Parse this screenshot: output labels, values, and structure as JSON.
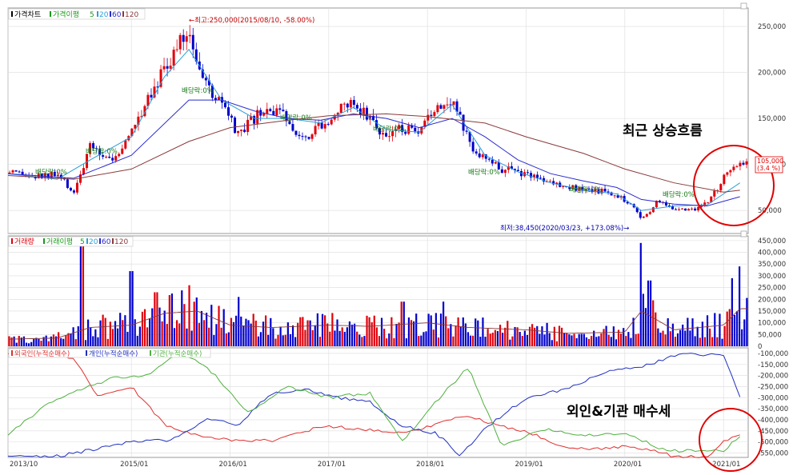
{
  "annotations": {
    "recent_trend": "최근 상승흐름",
    "buying_trend": "외인&기관 매수세",
    "high_label": "←최고:250,000(2015/08/10, -58.00%)",
    "low_label": "최저:38,450(2020/03/23, +173.08%)→",
    "dividend_label": "배당락:0%",
    "current_price": "105,000",
    "current_change": "(3.4 %)"
  },
  "colors": {
    "up": "#e0000a",
    "down": "#0000cc",
    "ma5": "#1a9a1a",
    "ma20": "#2aa0d8",
    "ma60": "#2a2ad0",
    "ma120": "#8a3a3a",
    "foreign": "#e03030",
    "individual": "#2030c0",
    "institution": "#50b040",
    "circle": "#e00000",
    "grid": "#dcdcdc"
  },
  "chart_data": [
    {
      "type": "line",
      "title": "",
      "legend": {
        "placement": "top-left",
        "label": "가격차트",
        "ma_label": "가격이평",
        "periods": [
          "5",
          "20",
          "60",
          "120"
        ]
      },
      "ylim": [
        25000,
        270000
      ],
      "yticks": [
        50000,
        100000,
        150000,
        200000,
        250000
      ],
      "ytick_labels": [
        "50,000",
        "100,000",
        "150,000",
        "200,000",
        "250,000"
      ],
      "series": [
        {
          "key": "close",
          "dates": [
            "2013/10",
            "2014/01",
            "2014/04",
            "2014/06",
            "2014/08",
            "2014/11",
            "2015/01",
            "2015/03",
            "2015/05",
            "2015/07",
            "2015/08",
            "2015/10",
            "2015/12",
            "2016/02",
            "2016/04",
            "2016/06",
            "2016/08",
            "2016/10",
            "2016/12",
            "2017/02",
            "2017/04",
            "2017/06",
            "2017/08",
            "2017/10",
            "2017/12",
            "2018/02",
            "2018/04",
            "2018/06",
            "2018/08",
            "2018/10",
            "2018/12",
            "2019/02",
            "2019/04",
            "2019/06",
            "2019/08",
            "2019/10",
            "2019/12",
            "2020/02",
            "2020/03",
            "2020/05",
            "2020/07",
            "2020/09",
            "2020/11",
            "2021/01",
            "2021/03"
          ],
          "values": [
            90000,
            86000,
            88000,
            70000,
            118000,
            105000,
            135000,
            175000,
            205000,
            232000,
            248000,
            185000,
            165000,
            130000,
            150000,
            160000,
            148000,
            130000,
            145000,
            155000,
            170000,
            150000,
            130000,
            140000,
            130000,
            165000,
            172000,
            125000,
            105000,
            95000,
            92000,
            88000,
            80000,
            78000,
            70000,
            72000,
            68000,
            55000,
            40000,
            60000,
            52000,
            50000,
            58000,
            85000,
            105000
          ]
        },
        {
          "key": "ma20",
          "name": "20",
          "dates": [
            "2013/10",
            "2014/04",
            "2014/08",
            "2015/01",
            "2015/05",
            "2015/08",
            "2015/12",
            "2016/04",
            "2016/08",
            "2016/12",
            "2017/04",
            "2017/08",
            "2017/12",
            "2018/04",
            "2018/08",
            "2018/12",
            "2019/04",
            "2019/08",
            "2019/12",
            "2020/03",
            "2020/07",
            "2020/11",
            "2021/03"
          ],
          "values": [
            90000,
            84000,
            105000,
            130000,
            195000,
            225000,
            170000,
            150000,
            150000,
            145000,
            162000,
            138000,
            135000,
            165000,
            110000,
            92000,
            80000,
            72000,
            68000,
            50000,
            55000,
            56000,
            80000
          ]
        },
        {
          "key": "ma60",
          "name": "60",
          "dates": [
            "2013/10",
            "2014/06",
            "2015/01",
            "2015/08",
            "2015/12",
            "2016/04",
            "2016/08",
            "2016/12",
            "2017/04",
            "2017/08",
            "2017/12",
            "2018/04",
            "2018/08",
            "2018/12",
            "2019/04",
            "2019/08",
            "2019/12",
            "2020/03",
            "2020/07",
            "2020/11",
            "2021/03"
          ],
          "values": [
            90000,
            85000,
            110000,
            170000,
            170000,
            158000,
            150000,
            148000,
            155000,
            150000,
            140000,
            150000,
            130000,
            105000,
            90000,
            82000,
            75000,
            62000,
            57000,
            55000,
            65000
          ]
        },
        {
          "key": "ma120",
          "name": "120",
          "dates": [
            "2013/10",
            "2014/06",
            "2015/01",
            "2015/08",
            "2016/01",
            "2016/08",
            "2017/01",
            "2017/08",
            "2018/01",
            "2018/08",
            "2019/01",
            "2019/08",
            "2020/01",
            "2020/07",
            "2021/01",
            "2021/03"
          ],
          "values": [
            88000,
            84000,
            95000,
            125000,
            140000,
            148000,
            153000,
            155000,
            152000,
            145000,
            130000,
            112000,
            95000,
            80000,
            70000,
            72000
          ]
        }
      ]
    },
    {
      "type": "bar",
      "title": "",
      "legend": {
        "placement": "top-left",
        "label": "거래량",
        "ma_label": "거래이평",
        "periods": [
          "5",
          "20",
          "60",
          "120"
        ]
      },
      "ylim": [
        0,
        470000
      ],
      "yticks": [
        0,
        50000,
        100000,
        150000,
        200000,
        250000,
        300000,
        350000,
        400000,
        450000
      ],
      "ytick_labels": [
        "0",
        "50,000",
        "100,000",
        "150,000",
        "200,000",
        "250,000",
        "300,000",
        "350,000",
        "400,000",
        "450,000"
      ],
      "series": [
        {
          "key": "volume_baseline",
          "dates": [
            "2013/10",
            "2014/04",
            "2014/08",
            "2015/01",
            "2015/05",
            "2015/09",
            "2016/01",
            "2016/06",
            "2017/01",
            "2017/06",
            "2018/01",
            "2018/06",
            "2019/01",
            "2019/06",
            "2020/01",
            "2020/03",
            "2020/07",
            "2021/01",
            "2021/03"
          ],
          "values": [
            30000,
            35000,
            80000,
            90000,
            140000,
            150000,
            90000,
            80000,
            90000,
            85000,
            100000,
            80000,
            70000,
            55000,
            60000,
            150000,
            70000,
            90000,
            160000
          ]
        },
        {
          "key": "volume_spikes",
          "dates": [
            "2014/07",
            "2015/01",
            "2015/04",
            "2015/08",
            "2016/02",
            "2017/10",
            "2018/03",
            "2020/03",
            "2020/04",
            "2021/02",
            "2021/03"
          ],
          "values": [
            440000,
            320000,
            230000,
            260000,
            210000,
            190000,
            190000,
            440000,
            280000,
            290000,
            340000
          ]
        }
      ]
    },
    {
      "type": "line",
      "title": "",
      "legend": {
        "placement": "top-left",
        "items": [
          "외국인(누적순매수)",
          "개인(누적순매수)",
          "기관(누적순매수)"
        ]
      },
      "ylim": [
        -570000,
        -75000
      ],
      "yticks": [
        -100000,
        -150000,
        -200000,
        -250000,
        -300000,
        -350000,
        -400000,
        -450000,
        -500000,
        -550000
      ],
      "ytick_labels": [
        "-100,000",
        "-150,000",
        "-200,000",
        "-250,000",
        "-300,000",
        "-350,000",
        "-400,000",
        "-450,000",
        "-500,000",
        "-550,000"
      ],
      "series": [
        {
          "key": "foreign",
          "name": "외국인(누적순매수)",
          "dates": [
            "2013/10",
            "2014/02",
            "2014/06",
            "2014/09",
            "2015/01",
            "2015/05",
            "2015/09",
            "2016/01",
            "2016/06",
            "2016/10",
            "2017/01",
            "2017/06",
            "2017/10",
            "2018/02",
            "2018/06",
            "2018/10",
            "2019/01",
            "2019/06",
            "2019/10",
            "2020/02",
            "2020/07",
            "2020/11",
            "2021/01",
            "2021/03"
          ],
          "values": [
            -100000,
            -90000,
            -120000,
            -300000,
            -250000,
            -420000,
            -470000,
            -490000,
            -495000,
            -450000,
            -430000,
            -445000,
            -460000,
            -420000,
            -380000,
            -430000,
            -450000,
            -530000,
            -530000,
            -520000,
            -565000,
            -570000,
            -500000,
            -470000
          ]
        },
        {
          "key": "individual",
          "name": "개인(누적순매수)",
          "dates": [
            "2013/10",
            "2014/04",
            "2014/09",
            "2015/01",
            "2015/06",
            "2015/10",
            "2016/02",
            "2016/06",
            "2016/10",
            "2017/02",
            "2017/06",
            "2017/10",
            "2018/02",
            "2018/05",
            "2018/08",
            "2019/01",
            "2019/06",
            "2019/10",
            "2020/03",
            "2020/08",
            "2021/01",
            "2021/03"
          ],
          "values": [
            -560000,
            -565000,
            -530000,
            -500000,
            -490000,
            -400000,
            -420000,
            -280000,
            -260000,
            -300000,
            -320000,
            -430000,
            -460000,
            -560000,
            -440000,
            -300000,
            -260000,
            -190000,
            -160000,
            -100000,
            -110000,
            -300000
          ]
        },
        {
          "key": "institution",
          "name": "기관(누적순매수)",
          "dates": [
            "2013/10",
            "2014/03",
            "2014/08",
            "2014/11",
            "2015/03",
            "2015/07",
            "2015/11",
            "2016/03",
            "2016/08",
            "2017/01",
            "2017/06",
            "2017/10",
            "2018/02",
            "2018/06",
            "2018/10",
            "2019/03",
            "2019/08",
            "2020/01",
            "2020/06",
            "2021/01",
            "2021/03"
          ],
          "values": [
            -470000,
            -320000,
            -250000,
            -210000,
            -200000,
            -90000,
            -190000,
            -370000,
            -250000,
            -300000,
            -280000,
            -500000,
            -320000,
            -160000,
            -520000,
            -440000,
            -470000,
            -460000,
            -540000,
            -540000,
            -470000
          ]
        }
      ],
      "x_ticks": [
        "2013/10",
        "2015/01",
        "2016/01",
        "2017/01",
        "2018/01",
        "2019/01",
        "2020/01",
        "2021/01"
      ]
    }
  ]
}
